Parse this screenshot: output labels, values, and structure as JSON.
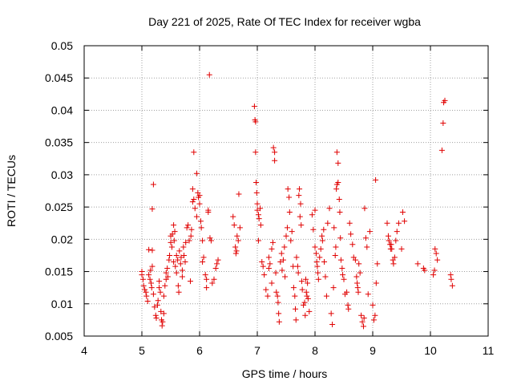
{
  "chart_data": {
    "type": "scatter",
    "title": "Day 221 of 2025, Rate Of TEC Index for receiver wgba",
    "xlabel": "GPS time / hours",
    "ylabel": "ROTI / TECUs",
    "xlim": [
      4,
      11
    ],
    "ylim": [
      0.005,
      0.05
    ],
    "xticks": [
      4,
      5,
      6,
      7,
      8,
      9,
      10,
      11
    ],
    "yticks": [
      0.005,
      0.01,
      0.015,
      0.02,
      0.025,
      0.03,
      0.035,
      0.04,
      0.045,
      0.05
    ],
    "xtick_labels": [
      "4",
      "5",
      "6",
      "7",
      "8",
      "9",
      "10",
      "11"
    ],
    "ytick_labels": [
      "0.005",
      "0.01",
      "0.015",
      "0.02",
      "0.025",
      "0.03",
      "0.035",
      "0.04",
      "0.045",
      "0.05"
    ],
    "grid": true,
    "marker": "+",
    "color": "#e00000",
    "points": [
      [
        5.0,
        0.015
      ],
      [
        5.0,
        0.0145
      ],
      [
        5.02,
        0.0138
      ],
      [
        5.03,
        0.0128
      ],
      [
        5.05,
        0.0122
      ],
      [
        5.07,
        0.0118
      ],
      [
        5.08,
        0.0112
      ],
      [
        5.1,
        0.0104
      ],
      [
        5.12,
        0.0184
      ],
      [
        5.12,
        0.0145
      ],
      [
        5.14,
        0.0138
      ],
      [
        5.15,
        0.0152
      ],
      [
        5.16,
        0.0132
      ],
      [
        5.17,
        0.0125
      ],
      [
        5.18,
        0.0183
      ],
      [
        5.18,
        0.0158
      ],
      [
        5.18,
        0.0247
      ],
      [
        5.2,
        0.0285
      ],
      [
        5.2,
        0.0115
      ],
      [
        5.22,
        0.0095
      ],
      [
        5.24,
        0.0082
      ],
      [
        5.25,
        0.0078
      ],
      [
        5.27,
        0.0098
      ],
      [
        5.28,
        0.0105
      ],
      [
        5.3,
        0.0135
      ],
      [
        5.3,
        0.0125
      ],
      [
        5.32,
        0.0118
      ],
      [
        5.33,
        0.0088
      ],
      [
        5.34,
        0.0075
      ],
      [
        5.35,
        0.0066
      ],
      [
        5.36,
        0.0072
      ],
      [
        5.38,
        0.0085
      ],
      [
        5.38,
        0.0112
      ],
      [
        5.4,
        0.0128
      ],
      [
        5.42,
        0.0148
      ],
      [
        5.42,
        0.0138
      ],
      [
        5.44,
        0.0155
      ],
      [
        5.45,
        0.0142
      ],
      [
        5.47,
        0.0168
      ],
      [
        5.48,
        0.0175
      ],
      [
        5.5,
        0.0205
      ],
      [
        5.5,
        0.0195
      ],
      [
        5.52,
        0.0188
      ],
      [
        5.53,
        0.0208
      ],
      [
        5.55,
        0.0222
      ],
      [
        5.55,
        0.0165
      ],
      [
        5.56,
        0.0198
      ],
      [
        5.57,
        0.0212
      ],
      [
        5.58,
        0.0158
      ],
      [
        5.6,
        0.0148
      ],
      [
        5.6,
        0.0175
      ],
      [
        5.62,
        0.0168
      ],
      [
        5.63,
        0.0128
      ],
      [
        5.64,
        0.0118
      ],
      [
        5.65,
        0.0182
      ],
      [
        5.67,
        0.0162
      ],
      [
        5.68,
        0.0172
      ],
      [
        5.7,
        0.0152
      ],
      [
        5.7,
        0.0142
      ],
      [
        5.72,
        0.0188
      ],
      [
        5.73,
        0.0175
      ],
      [
        5.75,
        0.0165
      ],
      [
        5.76,
        0.0195
      ],
      [
        5.78,
        0.0218
      ],
      [
        5.8,
        0.0222
      ],
      [
        5.82,
        0.0198
      ],
      [
        5.84,
        0.0135
      ],
      [
        5.85,
        0.0205
      ],
      [
        5.86,
        0.0215
      ],
      [
        5.88,
        0.0258
      ],
      [
        5.88,
        0.0278
      ],
      [
        5.9,
        0.0335
      ],
      [
        5.9,
        0.0262
      ],
      [
        5.92,
        0.0248
      ],
      [
        5.95,
        0.0235
      ],
      [
        5.95,
        0.0302
      ],
      [
        5.97,
        0.0272
      ],
      [
        5.98,
        0.0265
      ],
      [
        6.0,
        0.0268
      ],
      [
        6.0,
        0.0255
      ],
      [
        6.02,
        0.0228
      ],
      [
        6.03,
        0.0218
      ],
      [
        6.05,
        0.0198
      ],
      [
        6.05,
        0.0165
      ],
      [
        6.07,
        0.0172
      ],
      [
        6.1,
        0.0145
      ],
      [
        6.12,
        0.0138
      ],
      [
        6.12,
        0.0125
      ],
      [
        6.15,
        0.0242
      ],
      [
        6.15,
        0.0245
      ],
      [
        6.17,
        0.0455
      ],
      [
        6.18,
        0.0202
      ],
      [
        6.2,
        0.0198
      ],
      [
        6.22,
        0.0132
      ],
      [
        6.25,
        0.0138
      ],
      [
        6.28,
        0.0155
      ],
      [
        6.3,
        0.0162
      ],
      [
        6.32,
        0.0168
      ],
      [
        6.58,
        0.0235
      ],
      [
        6.6,
        0.0222
      ],
      [
        6.62,
        0.0188
      ],
      [
        6.63,
        0.0178
      ],
      [
        6.64,
        0.0182
      ],
      [
        6.65,
        0.0205
      ],
      [
        6.67,
        0.0198
      ],
      [
        6.68,
        0.027
      ],
      [
        6.7,
        0.0218
      ],
      [
        6.95,
        0.0406
      ],
      [
        6.96,
        0.0385
      ],
      [
        6.97,
        0.0382
      ],
      [
        6.97,
        0.0335
      ],
      [
        6.98,
        0.0288
      ],
      [
        6.99,
        0.0272
      ],
      [
        7.0,
        0.0255
      ],
      [
        7.0,
        0.0245
      ],
      [
        7.02,
        0.0238
      ],
      [
        7.02,
        0.0198
      ],
      [
        7.03,
        0.0232
      ],
      [
        7.05,
        0.0248
      ],
      [
        7.06,
        0.0222
      ],
      [
        7.08,
        0.0165
      ],
      [
        7.1,
        0.0158
      ],
      [
        7.12,
        0.0145
      ],
      [
        7.15,
        0.0122
      ],
      [
        7.18,
        0.0112
      ],
      [
        7.2,
        0.0155
      ],
      [
        7.2,
        0.0172
      ],
      [
        7.22,
        0.0162
      ],
      [
        7.25,
        0.0132
      ],
      [
        7.25,
        0.0185
      ],
      [
        7.27,
        0.0195
      ],
      [
        7.28,
        0.0342
      ],
      [
        7.3,
        0.0335
      ],
      [
        7.3,
        0.0322
      ],
      [
        7.32,
        0.0148
      ],
      [
        7.33,
        0.0118
      ],
      [
        7.35,
        0.0112
      ],
      [
        7.36,
        0.0102
      ],
      [
        7.37,
        0.0085
      ],
      [
        7.38,
        0.0072
      ],
      [
        7.4,
        0.0165
      ],
      [
        7.42,
        0.0178
      ],
      [
        7.43,
        0.0152
      ],
      [
        7.45,
        0.0168
      ],
      [
        7.47,
        0.0188
      ],
      [
        7.48,
        0.0142
      ],
      [
        7.5,
        0.0205
      ],
      [
        7.52,
        0.0218
      ],
      [
        7.53,
        0.0278
      ],
      [
        7.55,
        0.0265
      ],
      [
        7.56,
        0.0242
      ],
      [
        7.58,
        0.0198
      ],
      [
        7.6,
        0.0212
      ],
      [
        7.62,
        0.0158
      ],
      [
        7.63,
        0.0125
      ],
      [
        7.65,
        0.0112
      ],
      [
        7.66,
        0.0092
      ],
      [
        7.67,
        0.0075
      ],
      [
        7.68,
        0.0172
      ],
      [
        7.7,
        0.0158
      ],
      [
        7.71,
        0.0148
      ],
      [
        7.72,
        0.0268
      ],
      [
        7.73,
        0.0278
      ],
      [
        7.74,
        0.0235
      ],
      [
        7.75,
        0.0255
      ],
      [
        7.76,
        0.0222
      ],
      [
        7.77,
        0.0135
      ],
      [
        7.78,
        0.0122
      ],
      [
        7.8,
        0.0098
      ],
      [
        7.82,
        0.0102
      ],
      [
        7.83,
        0.0082
      ],
      [
        7.84,
        0.0138
      ],
      [
        7.85,
        0.0118
      ],
      [
        7.86,
        0.0112
      ],
      [
        7.87,
        0.0132
      ],
      [
        7.88,
        0.0108
      ],
      [
        7.9,
        0.0088
      ],
      [
        7.95,
        0.0238
      ],
      [
        7.97,
        0.0215
      ],
      [
        8.0,
        0.0245
      ],
      [
        8.0,
        0.0188
      ],
      [
        8.02,
        0.0178
      ],
      [
        8.03,
        0.0165
      ],
      [
        8.04,
        0.0158
      ],
      [
        8.05,
        0.0148
      ],
      [
        8.06,
        0.0138
      ],
      [
        8.08,
        0.0172
      ],
      [
        8.1,
        0.0185
      ],
      [
        8.12,
        0.0205
      ],
      [
        8.13,
        0.0198
      ],
      [
        8.15,
        0.0215
      ],
      [
        8.16,
        0.0165
      ],
      [
        8.18,
        0.0142
      ],
      [
        8.2,
        0.0112
      ],
      [
        8.22,
        0.0225
      ],
      [
        8.25,
        0.0248
      ],
      [
        8.28,
        0.0085
      ],
      [
        8.3,
        0.0068
      ],
      [
        8.32,
        0.0125
      ],
      [
        8.33,
        0.0218
      ],
      [
        8.35,
        0.0175
      ],
      [
        8.36,
        0.0188
      ],
      [
        8.37,
        0.0278
      ],
      [
        8.38,
        0.0285
      ],
      [
        8.38,
        0.0335
      ],
      [
        8.4,
        0.0318
      ],
      [
        8.4,
        0.0288
      ],
      [
        8.42,
        0.0262
      ],
      [
        8.43,
        0.0242
      ],
      [
        8.44,
        0.0202
      ],
      [
        8.45,
        0.0168
      ],
      [
        8.47,
        0.0155
      ],
      [
        8.48,
        0.0145
      ],
      [
        8.5,
        0.0138
      ],
      [
        8.52,
        0.0115
      ],
      [
        8.55,
        0.0118
      ],
      [
        8.57,
        0.0098
      ],
      [
        8.58,
        0.0092
      ],
      [
        8.6,
        0.0225
      ],
      [
        8.62,
        0.0208
      ],
      [
        8.65,
        0.0192
      ],
      [
        8.67,
        0.0172
      ],
      [
        8.7,
        0.0168
      ],
      [
        8.72,
        0.0142
      ],
      [
        8.73,
        0.0132
      ],
      [
        8.74,
        0.0125
      ],
      [
        8.75,
        0.0118
      ],
      [
        8.76,
        0.0162
      ],
      [
        8.78,
        0.0148
      ],
      [
        8.8,
        0.0082
      ],
      [
        8.82,
        0.0072
      ],
      [
        8.84,
        0.0065
      ],
      [
        8.85,
        0.0078
      ],
      [
        8.86,
        0.0248
      ],
      [
        8.88,
        0.0202
      ],
      [
        8.9,
        0.0188
      ],
      [
        8.92,
        0.0115
      ],
      [
        8.95,
        0.0212
      ],
      [
        9.0,
        0.0098
      ],
      [
        9.02,
        0.0075
      ],
      [
        9.04,
        0.0082
      ],
      [
        9.05,
        0.0292
      ],
      [
        9.06,
        0.0132
      ],
      [
        9.08,
        0.0162
      ],
      [
        9.25,
        0.0225
      ],
      [
        9.27,
        0.0205
      ],
      [
        9.28,
        0.0198
      ],
      [
        9.3,
        0.0192
      ],
      [
        9.31,
        0.0185
      ],
      [
        9.32,
        0.0192
      ],
      [
        9.33,
        0.0185
      ],
      [
        9.35,
        0.0168
      ],
      [
        9.36,
        0.0162
      ],
      [
        9.38,
        0.0172
      ],
      [
        9.4,
        0.0198
      ],
      [
        9.42,
        0.0212
      ],
      [
        9.45,
        0.0225
      ],
      [
        9.5,
        0.0185
      ],
      [
        9.52,
        0.0242
      ],
      [
        9.55,
        0.0228
      ],
      [
        9.78,
        0.0162
      ],
      [
        9.88,
        0.0155
      ],
      [
        9.9,
        0.0152
      ],
      [
        10.05,
        0.0145
      ],
      [
        10.07,
        0.0152
      ],
      [
        10.08,
        0.0185
      ],
      [
        10.1,
        0.0178
      ],
      [
        10.12,
        0.0168
      ],
      [
        10.2,
        0.0338
      ],
      [
        10.22,
        0.038
      ],
      [
        10.23,
        0.0412
      ],
      [
        10.25,
        0.0415
      ],
      [
        10.35,
        0.0145
      ],
      [
        10.36,
        0.0138
      ],
      [
        10.38,
        0.0128
      ]
    ]
  }
}
